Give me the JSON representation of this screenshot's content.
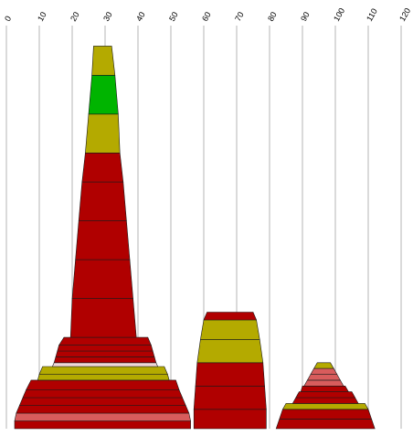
{
  "chart_data": {
    "type": "stacked-trapezoid",
    "title": "",
    "xlabel": "",
    "ylabel": "",
    "xlim": [
      0,
      120
    ],
    "x_ticks": [
      "0",
      "10",
      "20",
      "30",
      "40",
      "50",
      "60",
      "70",
      "80",
      "90",
      "100",
      "110",
      "120"
    ],
    "grid": true,
    "colors": {
      "red": "#b00000",
      "olive": "#b4aa00",
      "green": "#00b400",
      "pink": "#d85c5c",
      "pale": "#f0d8d8"
    },
    "towers": [
      {
        "segments": [
          {
            "x1b": 2.5,
            "x2b": 56.0,
            "x1t": 2.5,
            "x2t": 56.0,
            "h": 2.0,
            "c": "red"
          },
          {
            "x1b": 2.5,
            "x2b": 56.0,
            "x1t": 3.0,
            "x2t": 55.5,
            "h": 2.0,
            "c": "pink"
          },
          {
            "x1b": 3.0,
            "x2b": 55.5,
            "x1t": 4.0,
            "x2t": 54.5,
            "h": 2.0,
            "c": "red"
          },
          {
            "x1b": 4.0,
            "x2b": 54.5,
            "x1t": 5.0,
            "x2t": 53.5,
            "h": 2.0,
            "c": "red"
          },
          {
            "x1b": 5.0,
            "x2b": 53.5,
            "x1t": 6.0,
            "x2t": 52.5,
            "h": 2.0,
            "c": "red"
          },
          {
            "x1b": 6.0,
            "x2b": 52.5,
            "x1t": 7.5,
            "x2t": 51.5,
            "h": 2.5,
            "c": "red"
          },
          {
            "x1b": 9.5,
            "x2b": 49.5,
            "x1t": 10.0,
            "x2t": 49.0,
            "h": 1.5,
            "c": "olive"
          },
          {
            "x1b": 10.0,
            "x2b": 49.0,
            "x1t": 11.0,
            "x2t": 48.0,
            "h": 2.0,
            "c": "olive"
          },
          {
            "x1b": 14.0,
            "x2b": 46.0,
            "x1t": 14.5,
            "x2t": 45.5,
            "h": 1.0,
            "c": "pale"
          },
          {
            "x1b": 14.5,
            "x2b": 45.5,
            "x1t": 15.0,
            "x2t": 45.0,
            "h": 1.5,
            "c": "red"
          },
          {
            "x1b": 15.0,
            "x2b": 45.0,
            "x1t": 15.5,
            "x2t": 44.5,
            "h": 1.5,
            "c": "red"
          },
          {
            "x1b": 15.5,
            "x2b": 44.5,
            "x1t": 16.0,
            "x2t": 44.0,
            "h": 1.5,
            "c": "red"
          },
          {
            "x1b": 16.0,
            "x2b": 44.0,
            "x1t": 17.5,
            "x2t": 43.0,
            "h": 2.0,
            "c": "red"
          },
          {
            "x1b": 19.5,
            "x2b": 39.5,
            "x1t": 20.0,
            "x2t": 38.5,
            "h": 10.0,
            "c": "red"
          },
          {
            "x1b": 20.0,
            "x2b": 38.5,
            "x1t": 21.0,
            "x2t": 37.5,
            "h": 10.0,
            "c": "red"
          },
          {
            "x1b": 21.0,
            "x2b": 37.5,
            "x1t": 22.0,
            "x2t": 36.5,
            "h": 10.0,
            "c": "red"
          },
          {
            "x1b": 22.0,
            "x2b": 36.5,
            "x1t": 23.0,
            "x2t": 35.5,
            "h": 10.0,
            "c": "red"
          },
          {
            "x1b": 23.0,
            "x2b": 35.5,
            "x1t": 24.0,
            "x2t": 34.5,
            "h": 7.5,
            "c": "red"
          },
          {
            "x1b": 24.0,
            "x2b": 34.5,
            "x1t": 25.0,
            "x2t": 34.0,
            "h": 10.0,
            "c": "olive"
          },
          {
            "x1b": 25.0,
            "x2b": 34.0,
            "x1t": 26.0,
            "x2t": 33.0,
            "h": 10.0,
            "c": "green"
          },
          {
            "x1b": 26.0,
            "x2b": 33.0,
            "x1t": 26.5,
            "x2t": 32.0,
            "h": 7.5,
            "c": "olive"
          }
        ]
      },
      {
        "segments": [
          {
            "x1b": 57.0,
            "x2b": 79.0,
            "x1t": 57.0,
            "x2t": 79.0,
            "h": 5.0,
            "c": "red"
          },
          {
            "x1b": 57.0,
            "x2b": 79.0,
            "x1t": 57.5,
            "x2t": 78.5,
            "h": 6.0,
            "c": "red"
          },
          {
            "x1b": 57.5,
            "x2b": 78.5,
            "x1t": 58.0,
            "x2t": 78.0,
            "h": 6.0,
            "c": "red"
          },
          {
            "x1b": 58.0,
            "x2b": 78.0,
            "x1t": 59.0,
            "x2t": 77.0,
            "h": 6.0,
            "c": "olive"
          },
          {
            "x1b": 59.0,
            "x2b": 77.0,
            "x1t": 60.0,
            "x2t": 76.0,
            "h": 5.0,
            "c": "olive"
          },
          {
            "x1b": 60.0,
            "x2b": 76.0,
            "x1t": 61.0,
            "x2t": 75.0,
            "h": 2.0,
            "c": "red"
          }
        ]
      },
      {
        "segments": [
          {
            "x1b": 82.0,
            "x2b": 112.0,
            "x1t": 83.0,
            "x2t": 111.0,
            "h": 2.5,
            "c": "red"
          },
          {
            "x1b": 83.0,
            "x2b": 111.0,
            "x1t": 84.0,
            "x2t": 110.0,
            "h": 2.5,
            "c": "red"
          },
          {
            "x1b": 84.0,
            "x2b": 110.0,
            "x1t": 85.0,
            "x2t": 109.0,
            "h": 1.5,
            "c": "olive"
          },
          {
            "x1b": 87.0,
            "x2b": 107.0,
            "x1t": 88.0,
            "x2t": 106.0,
            "h": 1.5,
            "c": "red"
          },
          {
            "x1b": 88.0,
            "x2b": 106.0,
            "x1t": 89.0,
            "x2t": 105.0,
            "h": 1.5,
            "c": "red"
          },
          {
            "x1b": 89.5,
            "x2b": 104.0,
            "x1t": 90.0,
            "x2t": 103.0,
            "h": 1.5,
            "c": "red"
          },
          {
            "x1b": 90.5,
            "x2b": 102.5,
            "x1t": 91.5,
            "x2t": 101.5,
            "h": 1.5,
            "c": "pink"
          },
          {
            "x1b": 91.5,
            "x2b": 101.5,
            "x1t": 92.5,
            "x2t": 100.5,
            "h": 1.5,
            "c": "pink"
          },
          {
            "x1b": 92.5,
            "x2b": 100.5,
            "x1t": 93.5,
            "x2t": 99.5,
            "h": 1.5,
            "c": "pink"
          },
          {
            "x1b": 93.5,
            "x2b": 99.5,
            "x1t": 94.5,
            "x2t": 98.5,
            "h": 1.5,
            "c": "olive"
          }
        ]
      }
    ]
  }
}
